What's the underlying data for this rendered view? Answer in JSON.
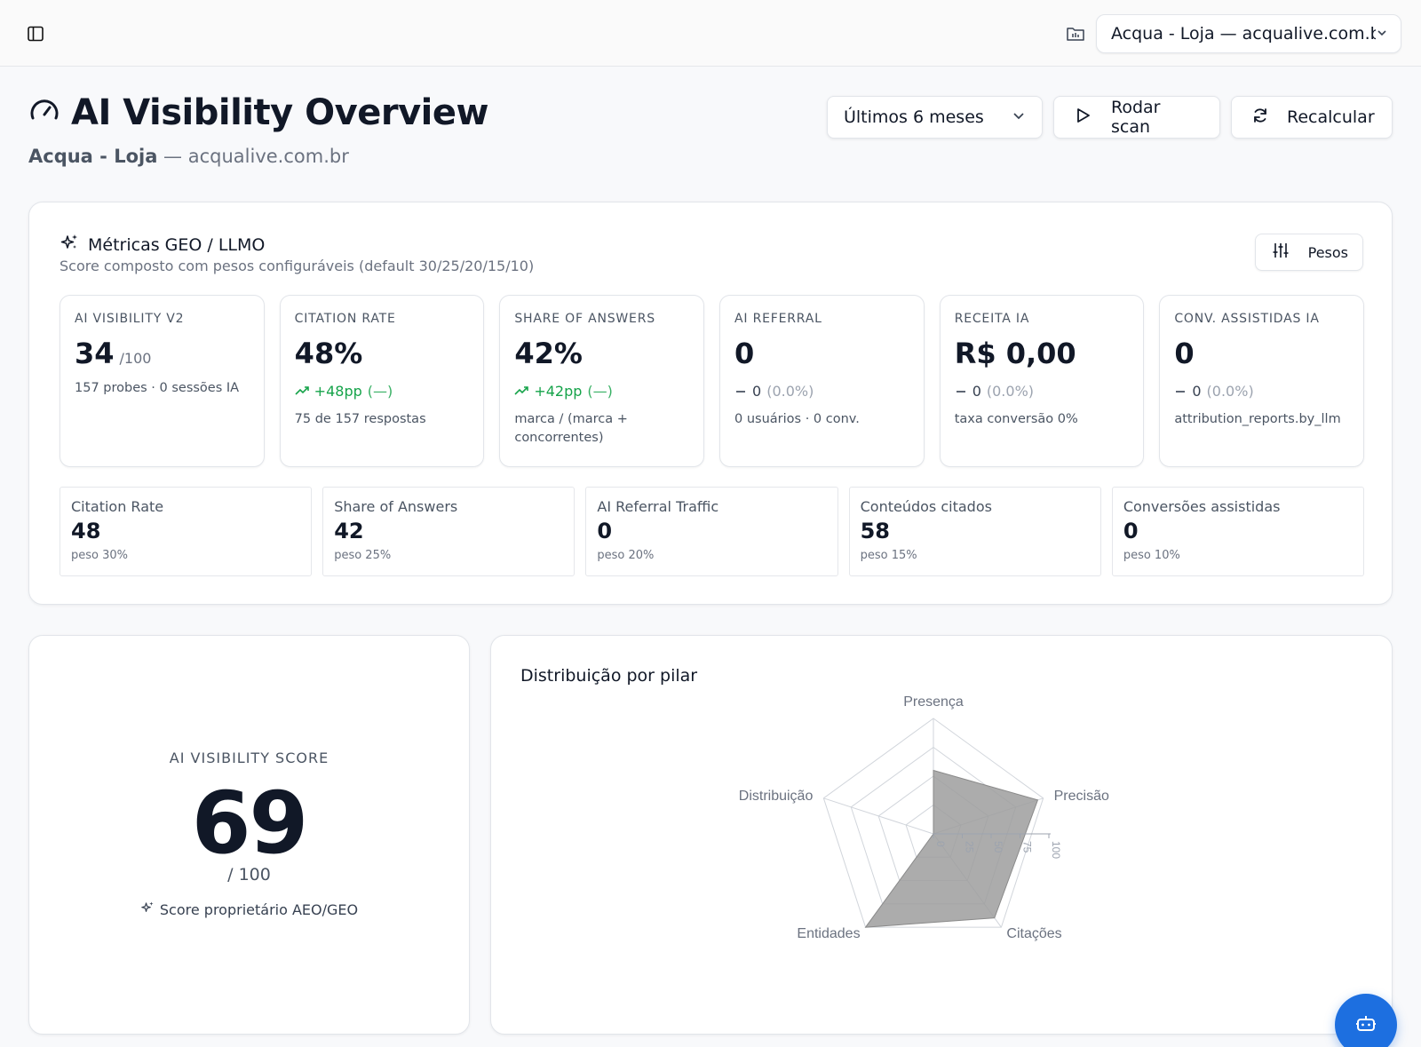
{
  "topbar": {
    "sidebar_toggle_icon": "sidebar-icon",
    "project_icon": "folder-chart-icon",
    "project_select_value": "Acqua - Loja — acqualive.com.br"
  },
  "header": {
    "title": "AI Visibility Overview",
    "title_icon": "gauge-icon",
    "subtitle_brand": "Acqua - Loja",
    "subtitle_rest": " — acqualive.com.br",
    "period_value": "Últimos 6 meses",
    "scan_label": "Rodar scan",
    "recalc_label": "Recalcular"
  },
  "metrics": {
    "title": "Métricas GEO / LLMO",
    "description": "Score composto com pesos configuráveis (default 30/25/20/15/10)",
    "pesos_label": "Pesos",
    "kpis": [
      {
        "label": "AI VISIBILITY V2",
        "value": "34",
        "unit": "/100",
        "sub": "157 probes · 0 sessões IA"
      },
      {
        "label": "CITATION RATE",
        "value": "48%",
        "delta": "+48pp",
        "delta_note": "(—)",
        "trend": "up",
        "sub": "75 de 157 respostas"
      },
      {
        "label": "SHARE OF ANSWERS",
        "value": "42%",
        "delta": "+42pp",
        "delta_note": "(—)",
        "trend": "up",
        "sub": "marca / (marca + concorrentes)"
      },
      {
        "label": "AI REFERRAL",
        "value": "0",
        "delta": "0",
        "delta_note": "(0.0%)",
        "trend": "flat",
        "sub": "0 usuários · 0 conv."
      },
      {
        "label": "RECEITA IA",
        "value": "R$ 0,00",
        "delta": "0",
        "delta_note": "(0.0%)",
        "trend": "flat",
        "sub": "taxa conversão 0%"
      },
      {
        "label": "CONV. ASSISTIDAS IA",
        "value": "0",
        "delta": "0",
        "delta_note": "(0.0%)",
        "trend": "flat",
        "sub": "attribution_reports.by_llm"
      }
    ],
    "weights": [
      {
        "label": "Citation Rate",
        "value": "48",
        "sub": "peso 30%"
      },
      {
        "label": "Share of Answers",
        "value": "42",
        "sub": "peso 25%"
      },
      {
        "label": "AI Referral Traffic",
        "value": "0",
        "sub": "peso 20%"
      },
      {
        "label": "Conteúdos citados",
        "value": "58",
        "sub": "peso 15%"
      },
      {
        "label": "Conversões assistidas",
        "value": "0",
        "sub": "peso 10%"
      }
    ]
  },
  "score": {
    "label": "AI VISIBILITY SCORE",
    "value": "69",
    "max": "/ 100",
    "note": "Score proprietário AEO/GEO"
  },
  "chart_data": {
    "type": "radar",
    "title": "Distribuição por pilar",
    "axes": [
      "Presença",
      "Precisão",
      "Citações",
      "Entidades",
      "Distribuição"
    ],
    "values": [
      55,
      95,
      90,
      100,
      0
    ],
    "range": [
      0,
      100
    ],
    "ticks": [
      "0",
      "25",
      "50",
      "75",
      "100"
    ],
    "fill_color": "#9e9e9e",
    "grid_color": "#d1d5db"
  },
  "fab": {
    "icon": "bot-icon"
  },
  "colors": {
    "accent": "#1d6fe0",
    "positive": "#16a34a"
  }
}
